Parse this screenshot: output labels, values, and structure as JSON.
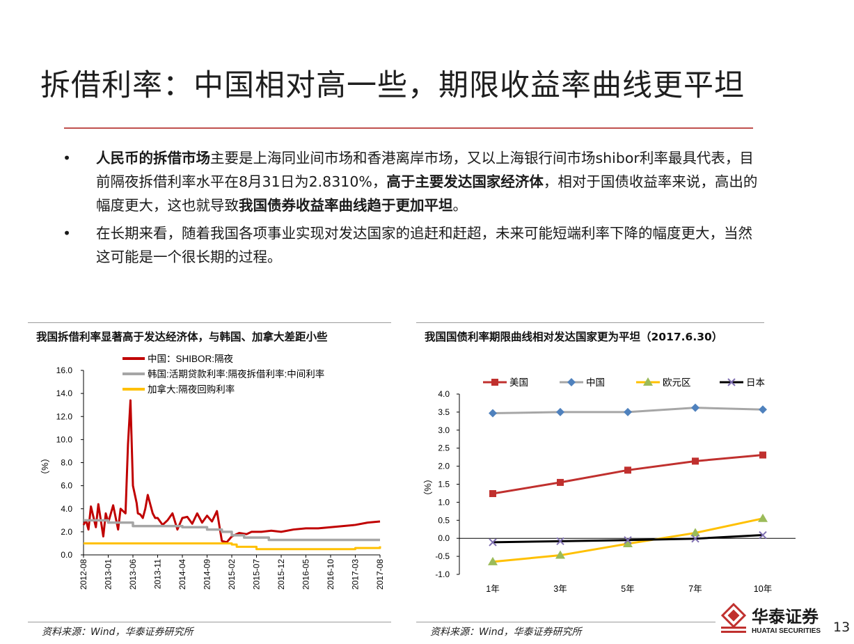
{
  "slide": {
    "title": "拆借利率：中国相对高一些，期限收益率曲线更平坦",
    "page_number": "13"
  },
  "bullets": [
    {
      "dot": "•",
      "segments": [
        {
          "text": "人民币的拆借市场",
          "bold": true
        },
        {
          "text": "主要是上海同业间市场和香港离岸市场，又以上海银行间市场shibor利率最具代表，目前隔夜拆借利率水平在8月31日为2.8310%，",
          "bold": false
        },
        {
          "text": "高于主要发达国家经济体",
          "bold": true
        },
        {
          "text": "，相对于国债收益率来说，高出的幅度更大，这也就导致",
          "bold": false
        },
        {
          "text": "我国债券收益率曲线趋于更加平坦",
          "bold": true
        },
        {
          "text": "。",
          "bold": false
        }
      ]
    },
    {
      "dot": "•",
      "segments": [
        {
          "text": "在长期来看，随着我国各项事业实现对发达国家的追赶和赶超，未来可能短端利率下降的幅度更大，当然这可能是一个很长期的过程。",
          "bold": false
        }
      ]
    }
  ],
  "left_chart": {
    "heading": "我国拆借利率显著高于发达经济体，与韩国、加拿大差距小些",
    "source": "资料来源：Wind，华泰证券研究所"
  },
  "right_chart": {
    "heading": "我国国债利率期限曲线相对发达国家更为平坦（2017.6.30）",
    "source": "资料来源：Wind，华泰证券研究所"
  },
  "logo": {
    "cn": "华泰证券",
    "en": "HUATAI SECURITIES"
  },
  "colors": {
    "accent_red": "#c0504d",
    "china_red": "#c00000",
    "korea_gray": "#a6a6a6",
    "canada_yellow": "#ffc000",
    "us_red": "#c0302e",
    "cn_blue": "#4f81bd",
    "gray_line": "#a6a6a6",
    "eu_yellow": "#ffc000",
    "jp_black": "#000000"
  },
  "chart_data": [
    {
      "type": "line",
      "ylabel": "（%）",
      "ylim": [
        0,
        16
      ],
      "yticks": [
        "0.0",
        "2.0",
        "4.0",
        "6.0",
        "8.0",
        "10.0",
        "12.0",
        "14.0",
        "16.0"
      ],
      "xticks": [
        "2012-08",
        "2013-01",
        "2013-06",
        "2013-11",
        "2014-04",
        "2014-09",
        "2015-02",
        "2015-07",
        "2015-12",
        "2016-05",
        "2016-10",
        "2017-03",
        "2017-08"
      ],
      "legend_position": "top",
      "series": [
        {
          "name": "中国：SHIBOR:隔夜",
          "x": [
            0,
            0.1,
            0.2,
            0.3,
            0.5,
            0.6,
            0.8,
            0.9,
            1.0,
            1.2,
            1.4,
            1.5,
            1.7,
            1.8,
            1.9,
            2.0,
            2.15,
            2.2,
            2.3,
            2.4,
            2.5,
            2.6,
            2.8,
            2.9,
            3.0,
            3.2,
            3.4,
            3.6,
            3.8,
            4.0,
            4.2,
            4.4,
            4.6,
            4.8,
            5.0,
            5.2,
            5.4,
            5.6,
            5.8,
            6.0,
            6.3,
            6.6,
            6.8,
            7.0,
            7.2,
            7.6,
            8.0,
            8.5,
            9.0,
            9.5,
            10.0,
            10.5,
            11.0,
            11.5,
            12.0
          ],
          "y": [
            2.6,
            3.0,
            2.2,
            4.2,
            2.4,
            4.4,
            1.6,
            3.6,
            2.8,
            4.3,
            2.2,
            4.0,
            3.6,
            9.6,
            13.4,
            6.0,
            4.5,
            3.6,
            3.5,
            3.2,
            4.0,
            5.2,
            3.6,
            3.2,
            3.2,
            2.6,
            3.0,
            3.6,
            2.2,
            3.2,
            3.3,
            2.7,
            3.6,
            2.8,
            3.4,
            2.9,
            3.8,
            1.2,
            1.1,
            1.6,
            1.9,
            1.8,
            2.0,
            2.0,
            2.0,
            2.1,
            2.0,
            2.2,
            2.3,
            2.3,
            2.4,
            2.5,
            2.6,
            2.8,
            2.9
          ]
        },
        {
          "name": "韩国:活期贷款利率:隔夜拆借利率:中间利率",
          "x": [
            0,
            1.0,
            2.0,
            3.0,
            4.0,
            5.0,
            5.6,
            6.0,
            6.5,
            7.0,
            7.5,
            8.0,
            9.0,
            10.0,
            11.0,
            12.0
          ],
          "y": [
            3.0,
            2.8,
            2.5,
            2.5,
            2.4,
            2.2,
            2.0,
            1.7,
            1.5,
            1.5,
            1.3,
            1.3,
            1.3,
            1.3,
            1.3,
            1.3
          ],
          "interpolation": "step"
        },
        {
          "name": "加拿大:隔夜回购利率",
          "x": [
            0,
            2.0,
            4.0,
            6.0,
            6.2,
            7.0,
            8.0,
            9.0,
            10.0,
            11.0,
            12.0
          ],
          "y": [
            1.0,
            1.0,
            1.0,
            0.9,
            0.7,
            0.5,
            0.5,
            0.5,
            0.5,
            0.6,
            0.75
          ],
          "interpolation": "step"
        }
      ]
    },
    {
      "type": "line",
      "ylabel": "（%）",
      "ylim": [
        -1.0,
        4.0
      ],
      "yticks": [
        "-1.0",
        "-0.5",
        "0.0",
        "0.5",
        "1.0",
        "1.5",
        "2.0",
        "2.5",
        "3.0",
        "3.5",
        "4.0"
      ],
      "categories": [
        "1年",
        "3年",
        "5年",
        "7年",
        "10年"
      ],
      "legend_position": "top",
      "series": [
        {
          "name": "美国",
          "marker": "square",
          "values": [
            1.24,
            1.55,
            1.89,
            2.14,
            2.31
          ]
        },
        {
          "name": "中国",
          "marker": "diamond",
          "values": [
            3.47,
            3.5,
            3.5,
            3.62,
            3.57
          ]
        },
        {
          "name": "欧元区",
          "marker": "triangle",
          "values": [
            -0.65,
            -0.47,
            -0.15,
            0.15,
            0.55
          ]
        },
        {
          "name": "日本",
          "marker": "x",
          "values": [
            -0.11,
            -0.08,
            -0.05,
            -0.01,
            0.09
          ]
        }
      ]
    }
  ]
}
